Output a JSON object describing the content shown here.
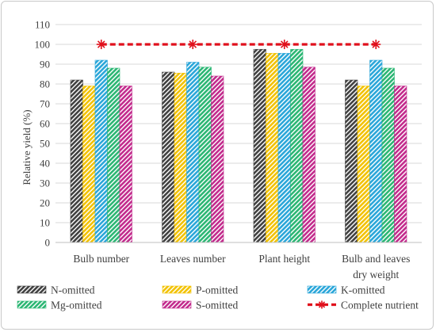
{
  "chart_data": {
    "type": "bar",
    "title": "",
    "xlabel": "",
    "ylabel": "Relative yield (%)",
    "ylim": [
      0,
      110
    ],
    "ytick_step": 10,
    "grid": true,
    "categories": [
      [
        "Bulb number"
      ],
      [
        "Leaves number"
      ],
      [
        "Plant height"
      ],
      [
        "Bulb and leaves",
        "dry weight"
      ]
    ],
    "series": [
      {
        "name": "N-omitted",
        "values": [
          82,
          86,
          97.5,
          82
        ],
        "color": "#404040",
        "pattern": "diag"
      },
      {
        "name": "P-omitted",
        "values": [
          79,
          85.5,
          95.5,
          79
        ],
        "color": "#f2c200",
        "pattern": "diag"
      },
      {
        "name": "K-omitted",
        "values": [
          92,
          91,
          95.5,
          92
        ],
        "color": "#2aa6d9",
        "pattern": "diag"
      },
      {
        "name": "Mg-omitted",
        "values": [
          88,
          88.5,
          97.5,
          88
        ],
        "color": "#2bb673",
        "pattern": "diag"
      },
      {
        "name": "S-omitted",
        "values": [
          79,
          84,
          88.5,
          79
        ],
        "color": "#c22a8c",
        "pattern": "diag"
      }
    ],
    "line_series": {
      "name": "Complete nutrient",
      "values": [
        100,
        100,
        100,
        100
      ],
      "color": "#e0101c",
      "marker": "asterisk"
    },
    "legend_position": "bottom"
  }
}
